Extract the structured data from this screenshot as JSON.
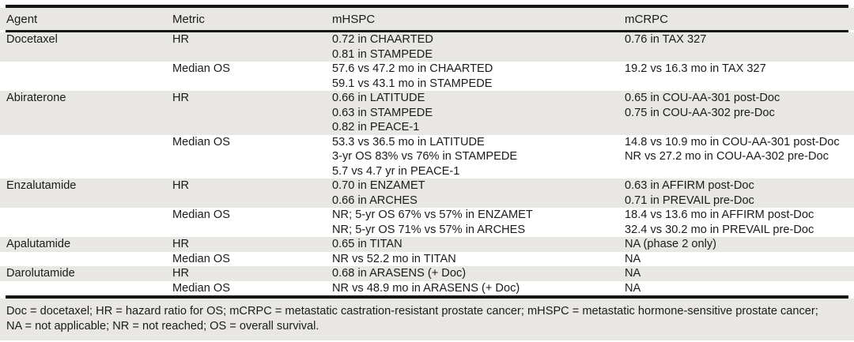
{
  "table": {
    "columns": [
      "Agent",
      "Metric",
      "mHSPC",
      "mCRPC"
    ],
    "rows": [
      {
        "agent": "Docetaxel",
        "metric": "HR",
        "mhspc": [
          "0.72 in CHAARTED",
          "0.81 in STAMPEDE"
        ],
        "mcrpc": [
          "0.76 in TAX 327"
        ]
      },
      {
        "agent": "",
        "metric": "Median OS",
        "mhspc": [
          "57.6 vs 47.2 mo in CHAARTED",
          "59.1 vs 43.1 mo in STAMPEDE"
        ],
        "mcrpc": [
          "19.2 vs 16.3 mo in TAX 327"
        ]
      },
      {
        "agent": "Abiraterone",
        "metric": "HR",
        "mhspc": [
          "0.66 in LATITUDE",
          "0.63 in STAMPEDE",
          "0.82 in PEACE-1"
        ],
        "mcrpc": [
          "0.65 in COU-AA-301 post-Doc",
          "0.75 in COU-AA-302 pre-Doc"
        ]
      },
      {
        "agent": "",
        "metric": "Median OS",
        "mhspc": [
          "53.3 vs 36.5 mo in LATITUDE",
          "3-yr OS 83% vs 76% in STAMPEDE",
          "5.7 vs 4.7 yr in PEACE-1"
        ],
        "mcrpc": [
          "14.8 vs 10.9 mo in COU-AA-301 post-Doc",
          "NR vs 27.2 mo in COU-AA-302 pre-Doc"
        ]
      },
      {
        "agent": "Enzalutamide",
        "metric": "HR",
        "mhspc": [
          "0.70 in ENZAMET",
          "0.66 in ARCHES"
        ],
        "mcrpc": [
          "0.63 in AFFIRM post-Doc",
          "0.71 in PREVAIL pre-Doc"
        ]
      },
      {
        "agent": "",
        "metric": "Median OS",
        "mhspc": [
          "NR; 5-yr OS 67% vs 57% in ENZAMET",
          "NR; 5-yr OS 71% vs 57% in ARCHES"
        ],
        "mcrpc": [
          "18.4 vs 13.6 mo in AFFIRM post-Doc",
          "32.4 vs 30.2 mo in PREVAIL pre-Doc"
        ]
      },
      {
        "agent": "Apalutamide",
        "metric": "HR",
        "mhspc": [
          "0.65 in TITAN"
        ],
        "mcrpc": [
          "NA (phase 2 only)"
        ]
      },
      {
        "agent": "",
        "metric": "Median OS",
        "mhspc": [
          "NR vs 52.2 mo in TITAN"
        ],
        "mcrpc": [
          "NA"
        ]
      },
      {
        "agent": "Darolutamide",
        "metric": "HR",
        "mhspc": [
          "0.68 in ARASENS (+ Doc)"
        ],
        "mcrpc": [
          "NA"
        ]
      },
      {
        "agent": "",
        "metric": "Median OS",
        "mhspc": [
          "NR vs 48.9 mo in ARASENS (+ Doc)"
        ],
        "mcrpc": [
          "NA"
        ]
      }
    ],
    "footnote_lines": [
      "Doc = docetaxel; HR = hazard ratio for OS; mCRPC = metastatic castration-resistant prostate cancer; mHSPC = metastatic hormone-sensitive prostate cancer;",
      "NA = not applicable; NR = not reached; OS = overall survival."
    ]
  },
  "colors": {
    "row_shade": "#e8e7e4",
    "rule": "#161616",
    "text": "#1b1b1b",
    "background": "#ffffff"
  }
}
